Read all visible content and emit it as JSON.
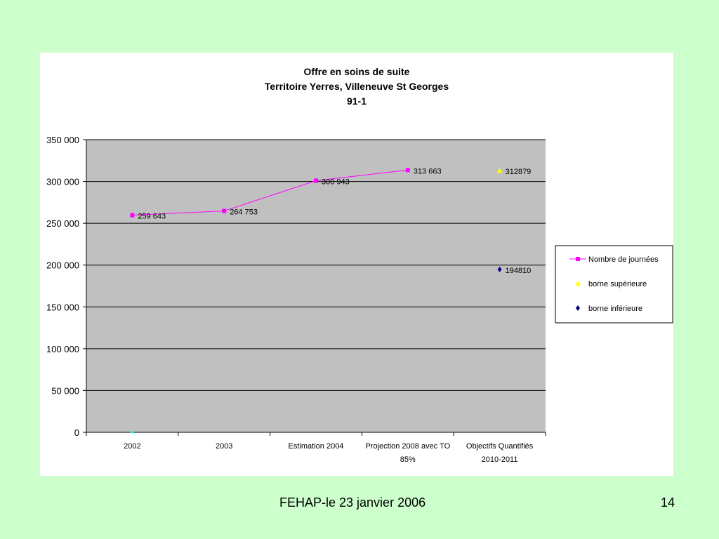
{
  "footer": {
    "text": "FEHAP-le 23 janvier 2006",
    "page_number": "14"
  },
  "chart_data": {
    "type": "line",
    "title_lines": [
      "Offre en soins de suite",
      "Territoire Yerres, Villeneuve St Georges",
      "91-1"
    ],
    "categories": [
      [
        "2002"
      ],
      [
        "2003"
      ],
      [
        "Estimation 2004"
      ],
      [
        "Projection 2008 avec TO",
        "85%"
      ],
      [
        "Objectifs Quantifiés",
        "2010-2011"
      ]
    ],
    "y_ticks": [
      "0",
      "50 000",
      "100 000",
      "150 000",
      "200 000",
      "250 000",
      "300 000",
      "350 000"
    ],
    "ylim": [
      0,
      350000
    ],
    "grid": true,
    "legend_position": "right",
    "series": [
      {
        "name": "Nombre de journées",
        "marker": "square",
        "color": "#ff00ff",
        "points": [
          {
            "category_index": 0,
            "value": 259643,
            "label": "259 643"
          },
          {
            "category_index": 1,
            "value": 264753,
            "label": "264 753"
          },
          {
            "category_index": 2,
            "value": 300943,
            "label": "300 943"
          },
          {
            "category_index": 3,
            "value": 313663,
            "label": "313 663"
          }
        ]
      },
      {
        "name": "borne supérieure",
        "marker": "triangle",
        "color": "#ffff00",
        "points": [
          {
            "category_index": 4,
            "value": 312879,
            "label": "312879"
          }
        ]
      },
      {
        "name": "borne inférieure",
        "marker": "diamond",
        "color": "#000080",
        "points": [
          {
            "category_index": 4,
            "value": 194810,
            "label": "194810"
          }
        ]
      }
    ],
    "colors": {
      "plot_background": "#c0c0c0",
      "gridline": "#000000",
      "stray_marker": "#00ffff"
    }
  }
}
